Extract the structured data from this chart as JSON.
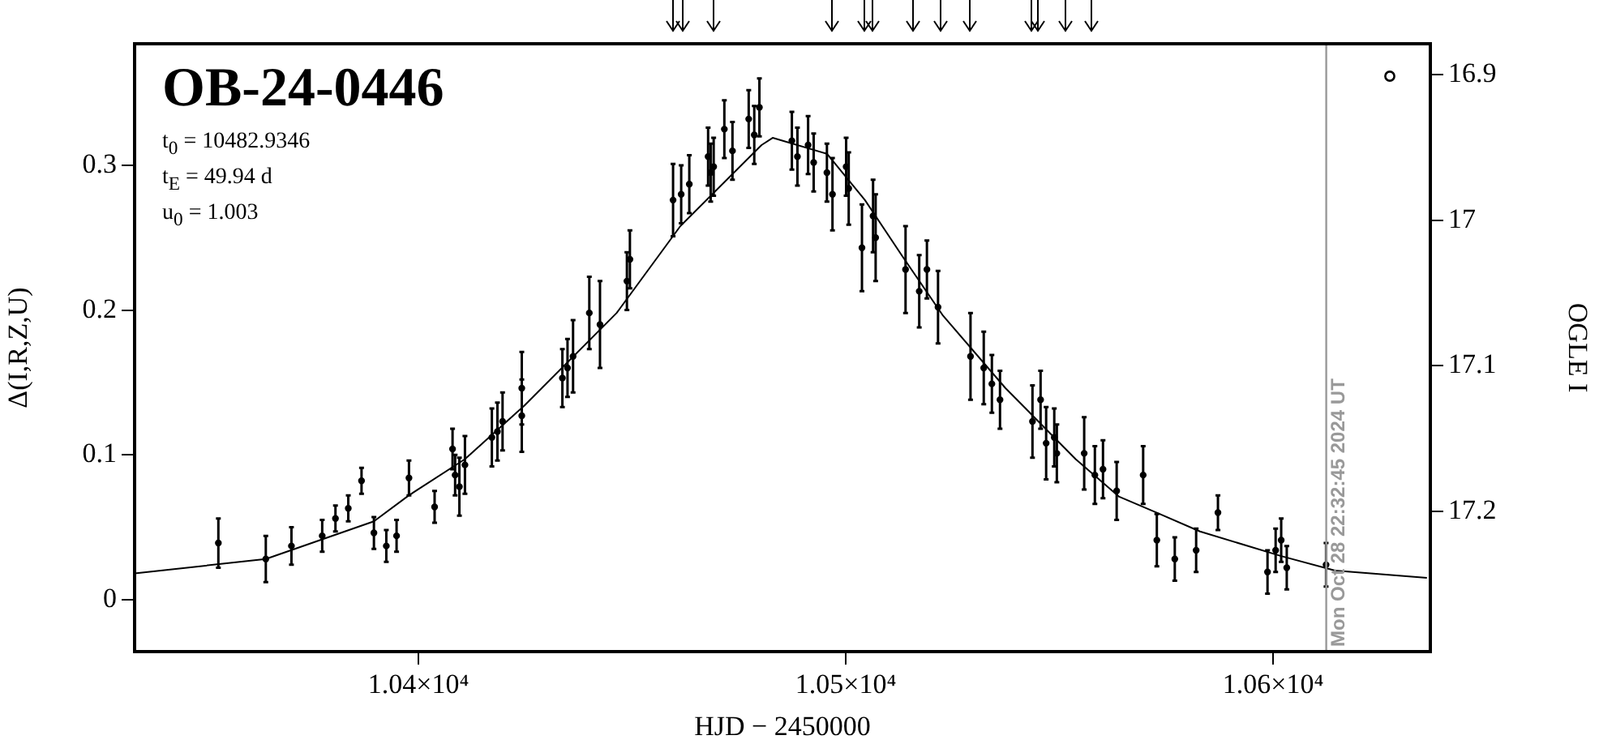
{
  "chart_data": {
    "type": "scatter",
    "title": "OB-24-0446",
    "xlabel": "HJD − 2450000",
    "ylabel": "Δ(I,R,Z,U)",
    "y2label": "OGLE I",
    "annotations": [
      "t$_{0}$ = 10482.9346",
      "t$_{E}$ = 49.94 d",
      "u$_{0}$ = 1.003",
      {
        "text": "Mon Oct 28 22:32:45 2024 UT",
        "x": 10612.44
      }
    ],
    "xlim": [
      10333.6,
      10636.8
    ],
    "xticks": [
      {
        "value": 10400,
        "label": "1.04×10⁴"
      },
      {
        "value": 10500,
        "label": "1.05×10⁴"
      },
      {
        "value": 10600,
        "label": "1.06×10⁴"
      }
    ],
    "ylim": [
      -0.036,
      0.384
    ],
    "yticks": [
      0,
      0.1,
      0.2,
      0.3
    ],
    "y2lim": [
      17.296,
      16.879
    ],
    "y2ticks": [
      16.9,
      17,
      17.1,
      17.2
    ],
    "grid": false,
    "legend": false,
    "marker": "circle",
    "ref_lines": [
      {
        "axis": "x",
        "value": 10612.44,
        "color": "#999999"
      }
    ],
    "series": [
      {
        "type": "scatter",
        "color": "#000000",
        "x": [
          10353.2,
          10364.3,
          10370.3,
          10377.5,
          10380.6,
          10383.6,
          10386.7,
          10389.6,
          10392.5,
          10394.9,
          10397.8,
          10403.8,
          10408.0,
          10408.6,
          10409.6,
          10410.9,
          10417.2,
          10418.5,
          10419.7,
          10424.2,
          10424.2,
          10433.7,
          10434.9,
          10436.2,
          10440.0,
          10442.5,
          10448.8,
          10449.5,
          10459.6,
          10461.5,
          10463.4,
          10467.8,
          10468.4,
          10471.6,
          10473.5,
          10469.1,
          10477.3,
          10478.6,
          10479.8,
          10487.4,
          10488.7,
          10491.2,
          10492.5,
          10495.6,
          10496.9,
          10500.1,
          10500.7,
          10503.8,
          10506.4,
          10507.0,
          10514.0,
          10517.2,
          10519.0,
          10521.6,
          10529.2,
          10532.3,
          10534.2,
          10536.1,
          10543.7,
          10545.6,
          10546.9,
          10548.8,
          10549.4,
          10555.8,
          10558.3,
          10560.2,
          10563.4,
          10569.6,
          10572.8,
          10577.0,
          10582.0,
          10587.1,
          10598.7,
          10600.6,
          10601.9,
          10603.2,
          10612.4
        ],
        "values": [
          0.039,
          0.028,
          0.037,
          0.044,
          0.056,
          0.063,
          0.082,
          0.046,
          0.037,
          0.044,
          0.084,
          0.064,
          0.104,
          0.086,
          0.078,
          0.093,
          0.112,
          0.116,
          0.123,
          0.127,
          0.146,
          0.153,
          0.16,
          0.168,
          0.198,
          0.19,
          0.22,
          0.235,
          0.276,
          0.28,
          0.287,
          0.306,
          0.295,
          0.325,
          0.31,
          0.299,
          0.332,
          0.321,
          0.34,
          0.317,
          0.306,
          0.314,
          0.302,
          0.295,
          0.28,
          0.299,
          0.284,
          0.243,
          0.265,
          0.25,
          0.228,
          0.213,
          0.228,
          0.202,
          0.168,
          0.16,
          0.149,
          0.138,
          0.123,
          0.138,
          0.108,
          0.112,
          0.101,
          0.101,
          0.086,
          0.09,
          0.075,
          0.086,
          0.041,
          0.028,
          0.034,
          0.06,
          0.019,
          0.034,
          0.041,
          0.022,
          0.024
        ],
        "errors": [
          0.017,
          0.016,
          0.013,
          0.011,
          0.009,
          0.009,
          0.009,
          0.011,
          0.011,
          0.011,
          0.012,
          0.011,
          0.014,
          0.014,
          0.02,
          0.02,
          0.02,
          0.02,
          0.02,
          0.025,
          0.025,
          0.02,
          0.02,
          0.025,
          0.025,
          0.03,
          0.02,
          0.02,
          0.025,
          0.02,
          0.02,
          0.02,
          0.02,
          0.02,
          0.02,
          0.02,
          0.02,
          0.02,
          0.02,
          0.02,
          0.02,
          0.02,
          0.02,
          0.02,
          0.025,
          0.02,
          0.025,
          0.03,
          0.025,
          0.03,
          0.03,
          0.025,
          0.02,
          0.025,
          0.03,
          0.025,
          0.02,
          0.02,
          0.025,
          0.02,
          0.025,
          0.02,
          0.02,
          0.025,
          0.02,
          0.02,
          0.02,
          0.02,
          0.018,
          0.015,
          0.015,
          0.012,
          0.015,
          0.015,
          0.015,
          0.015,
          0.015
        ]
      },
      {
        "type": "line",
        "color": "#000000",
        "marker": "none",
        "x": [
          10333.6,
          10364.3,
          10389.6,
          10397.8,
          10410.9,
          10424.8,
          10446.4,
          10461.3,
          10480.3,
          10482.9,
          10495.6,
          10504.5,
          10513.3,
          10522.8,
          10537.4,
          10553.8,
          10564,
          10572.8,
          10582.9,
          10601.9,
          10614.5,
          10636
        ],
        "values": [
          0.018,
          0.028,
          0.054,
          0.072,
          0.097,
          0.134,
          0.198,
          0.258,
          0.314,
          0.319,
          0.308,
          0.276,
          0.237,
          0.196,
          0.146,
          0.097,
          0.071,
          0.06,
          0.047,
          0.03,
          0.02,
          0.015
        ]
      }
    ]
  }
}
